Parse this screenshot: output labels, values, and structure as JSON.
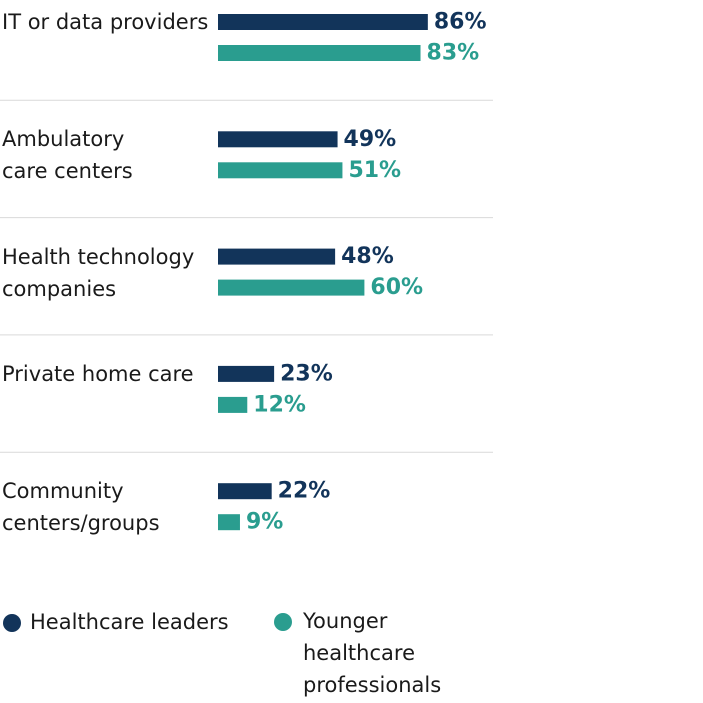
{
  "chart_data": {
    "type": "bar",
    "orientation": "horizontal",
    "categories": [
      "IT or data providers",
      "Ambulatory\ncare centers",
      "Health technology\ncompanies",
      "Private home care",
      "Community\ncenters/groups"
    ],
    "series": [
      {
        "name": "Healthcare leaders",
        "color": "#12345a",
        "values": [
          86,
          49,
          48,
          23,
          22
        ],
        "value_labels": [
          "86%",
          "49%",
          "48%",
          "23%",
          "22%"
        ]
      },
      {
        "name": "Younger healthcare professionals",
        "color": "#2a9d8f",
        "values": [
          83,
          51,
          60,
          12,
          9
        ],
        "value_labels": [
          "83%",
          "51%",
          "60%",
          "12%",
          "9%"
        ]
      }
    ]
  }
}
